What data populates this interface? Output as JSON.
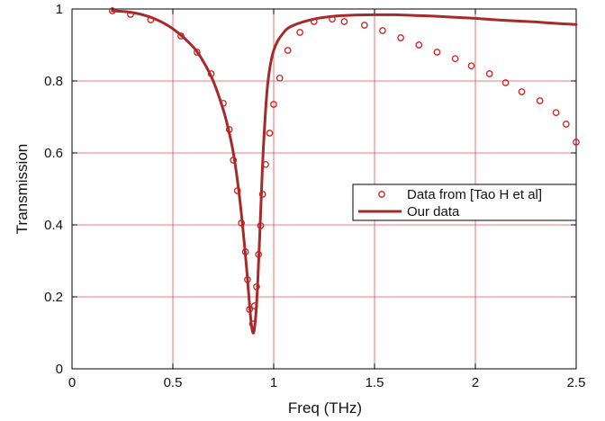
{
  "chart_data": {
    "type": "line",
    "title": "",
    "xlabel": "Freq (THz)",
    "ylabel": "Transmission",
    "xlim": [
      0,
      2.5
    ],
    "ylim": [
      0,
      1
    ],
    "x_ticks": [
      {
        "value": 0,
        "label": "0"
      },
      {
        "value": 0.5,
        "label": "0.5"
      },
      {
        "value": 1,
        "label": "1"
      },
      {
        "value": 1.5,
        "label": "1.5"
      },
      {
        "value": 2,
        "label": "2"
      },
      {
        "value": 2.5,
        "label": "2.5"
      }
    ],
    "y_ticks": [
      {
        "value": 0,
        "label": "0"
      },
      {
        "value": 0.2,
        "label": "0.2"
      },
      {
        "value": 0.4,
        "label": "0.4"
      },
      {
        "value": 0.6,
        "label": "0.6"
      },
      {
        "value": 0.8,
        "label": "0.8"
      },
      {
        "value": 1,
        "label": "1"
      }
    ],
    "grid": true,
    "grid_color": "#e05050",
    "legend_placement": "center-right",
    "series": [
      {
        "name": "Data from [Tao H et al]",
        "type": "scatter",
        "marker": "open-circle",
        "color": "#cc2222",
        "x": [
          0.2,
          0.29,
          0.39,
          0.54,
          0.62,
          0.69,
          0.75,
          0.78,
          0.8,
          0.82,
          0.84,
          0.86,
          0.87,
          0.88,
          0.895,
          0.905,
          0.915,
          0.925,
          0.935,
          0.945,
          0.96,
          0.98,
          1.0,
          1.03,
          1.07,
          1.13,
          1.2,
          1.29,
          1.35,
          1.45,
          1.54,
          1.63,
          1.72,
          1.81,
          1.9,
          1.98,
          2.07,
          2.15,
          2.23,
          2.32,
          2.4,
          2.45,
          2.5
        ],
        "y": [
          0.995,
          0.985,
          0.97,
          0.925,
          0.88,
          0.82,
          0.738,
          0.665,
          0.58,
          0.495,
          0.405,
          0.325,
          0.248,
          0.165,
          0.125,
          0.175,
          0.228,
          0.318,
          0.398,
          0.485,
          0.568,
          0.655,
          0.735,
          0.808,
          0.885,
          0.935,
          0.965,
          0.972,
          0.965,
          0.955,
          0.94,
          0.92,
          0.9,
          0.88,
          0.862,
          0.842,
          0.82,
          0.795,
          0.77,
          0.745,
          0.712,
          0.68,
          0.63
        ]
      },
      {
        "name": "Our data",
        "type": "line",
        "color": "#a52a2a",
        "x": [
          0.2,
          0.3,
          0.4,
          0.5,
          0.6,
          0.65,
          0.7,
          0.75,
          0.78,
          0.8,
          0.82,
          0.84,
          0.86,
          0.87,
          0.88,
          0.89,
          0.9,
          0.91,
          0.92,
          0.93,
          0.94,
          0.95,
          0.97,
          1.0,
          1.05,
          1.1,
          1.2,
          1.3,
          1.4,
          1.5,
          1.6,
          1.7,
          1.8,
          1.9,
          2.0,
          2.1,
          2.2,
          2.3,
          2.4,
          2.5
        ],
        "y": [
          0.995,
          0.99,
          0.975,
          0.945,
          0.895,
          0.855,
          0.8,
          0.72,
          0.655,
          0.6,
          0.525,
          0.43,
          0.315,
          0.25,
          0.18,
          0.12,
          0.1,
          0.14,
          0.23,
          0.36,
          0.5,
          0.625,
          0.79,
          0.885,
          0.935,
          0.955,
          0.972,
          0.98,
          0.983,
          0.984,
          0.984,
          0.982,
          0.98,
          0.977,
          0.974,
          0.97,
          0.967,
          0.964,
          0.96,
          0.957
        ]
      }
    ]
  }
}
